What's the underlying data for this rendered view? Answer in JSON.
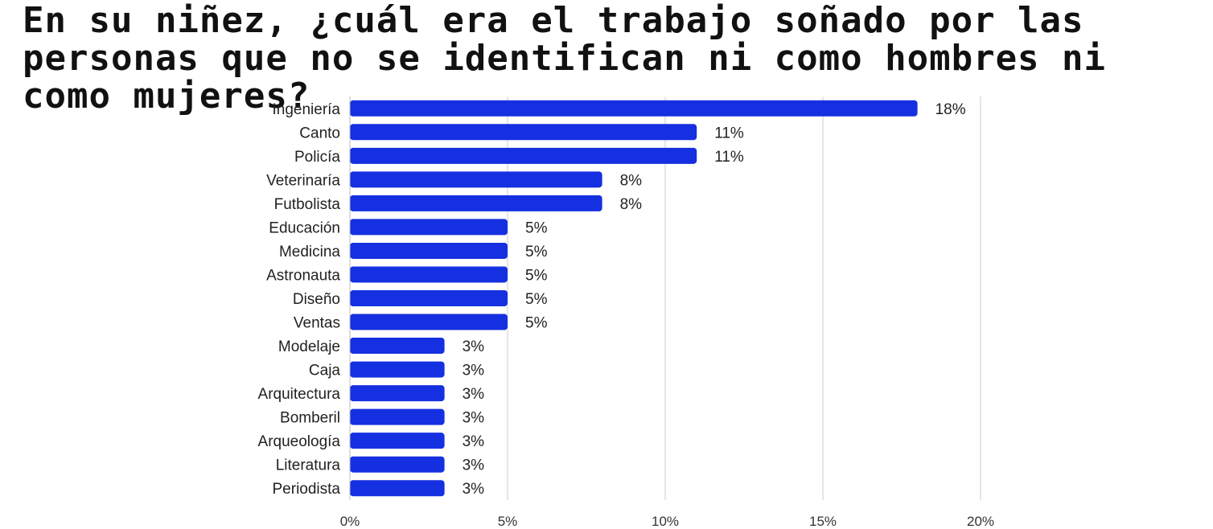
{
  "title": "En su niñez, ¿cuál era el trabajo soñado por las personas que no se identifican ni como hombres ni como mujeres?",
  "colors": {
    "bar": "#1530e0",
    "grid": "#cccccc",
    "text": "#222222"
  },
  "chart_data": {
    "type": "bar",
    "orientation": "horizontal",
    "categories": [
      "Ingeniería",
      "Canto",
      "Policía",
      "Veterinaría",
      "Futbolista",
      "Educación",
      "Medicina",
      "Astronauta",
      "Diseño",
      "Ventas",
      "Modelaje",
      "Caja",
      "Arquitectura",
      "Bomberil",
      "Arqueología",
      "Literatura",
      "Periodista"
    ],
    "values": [
      18,
      11,
      11,
      8,
      8,
      5,
      5,
      5,
      5,
      5,
      3,
      3,
      3,
      3,
      3,
      3,
      3
    ],
    "data_labels": [
      "18%",
      "11%",
      "11%",
      "8%",
      "8%",
      "5%",
      "5%",
      "5%",
      "5%",
      "5%",
      "3%",
      "3%",
      "3%",
      "3%",
      "3%",
      "3%",
      "3%"
    ],
    "xlim": [
      0,
      20
    ],
    "x_ticks": [
      0,
      5,
      10,
      15,
      20
    ],
    "x_tick_labels": [
      "0%",
      "5%",
      "10%",
      "15%",
      "20%"
    ],
    "grid": true,
    "legend": "none"
  }
}
